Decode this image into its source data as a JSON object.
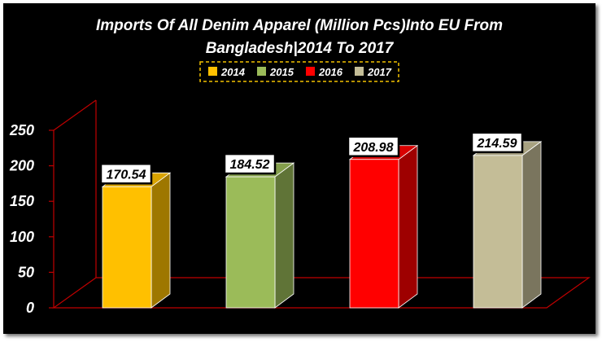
{
  "colors": {
    "background": "#000000",
    "text": "#ffffff",
    "axis": "#c00000",
    "legend_border": "#f2c100",
    "label_box": "#ffffff"
  },
  "chart_data": {
    "type": "bar",
    "title": "Imports Of All Denim Apparel (Million Pcs)Into EU From Bangladesh|2014 To 2017",
    "title_lines": [
      "Imports Of All Denim Apparel (Million Pcs)Into EU From",
      "Bangladesh|2014 To 2017"
    ],
    "xlabel": "",
    "ylabel": "",
    "categories": [
      "2014",
      "2015",
      "2016",
      "2017"
    ],
    "series": [
      {
        "name": "2014",
        "values": [
          170.54,
          null,
          null,
          null
        ],
        "color": "#ffc000"
      },
      {
        "name": "2015",
        "values": [
          null,
          184.52,
          null,
          null
        ],
        "color": "#9bbb59"
      },
      {
        "name": "2016",
        "values": [
          null,
          null,
          208.98,
          null
        ],
        "color": "#ff0000"
      },
      {
        "name": "2017",
        "values": [
          null,
          null,
          null,
          214.59
        ],
        "color": "#c4bd97"
      }
    ],
    "values": [
      170.54,
      184.52,
      208.98,
      214.59
    ],
    "value_labels": [
      "170.54",
      "184.52",
      "208.98",
      "214.59"
    ],
    "ylim": [
      0,
      250
    ],
    "yticks": [
      0,
      50,
      100,
      150,
      200,
      250
    ],
    "ytick_labels": [
      "0",
      "50",
      "100",
      "150",
      "200",
      "250"
    ],
    "grid": false,
    "three_d": true,
    "legend_position": "top-center"
  }
}
